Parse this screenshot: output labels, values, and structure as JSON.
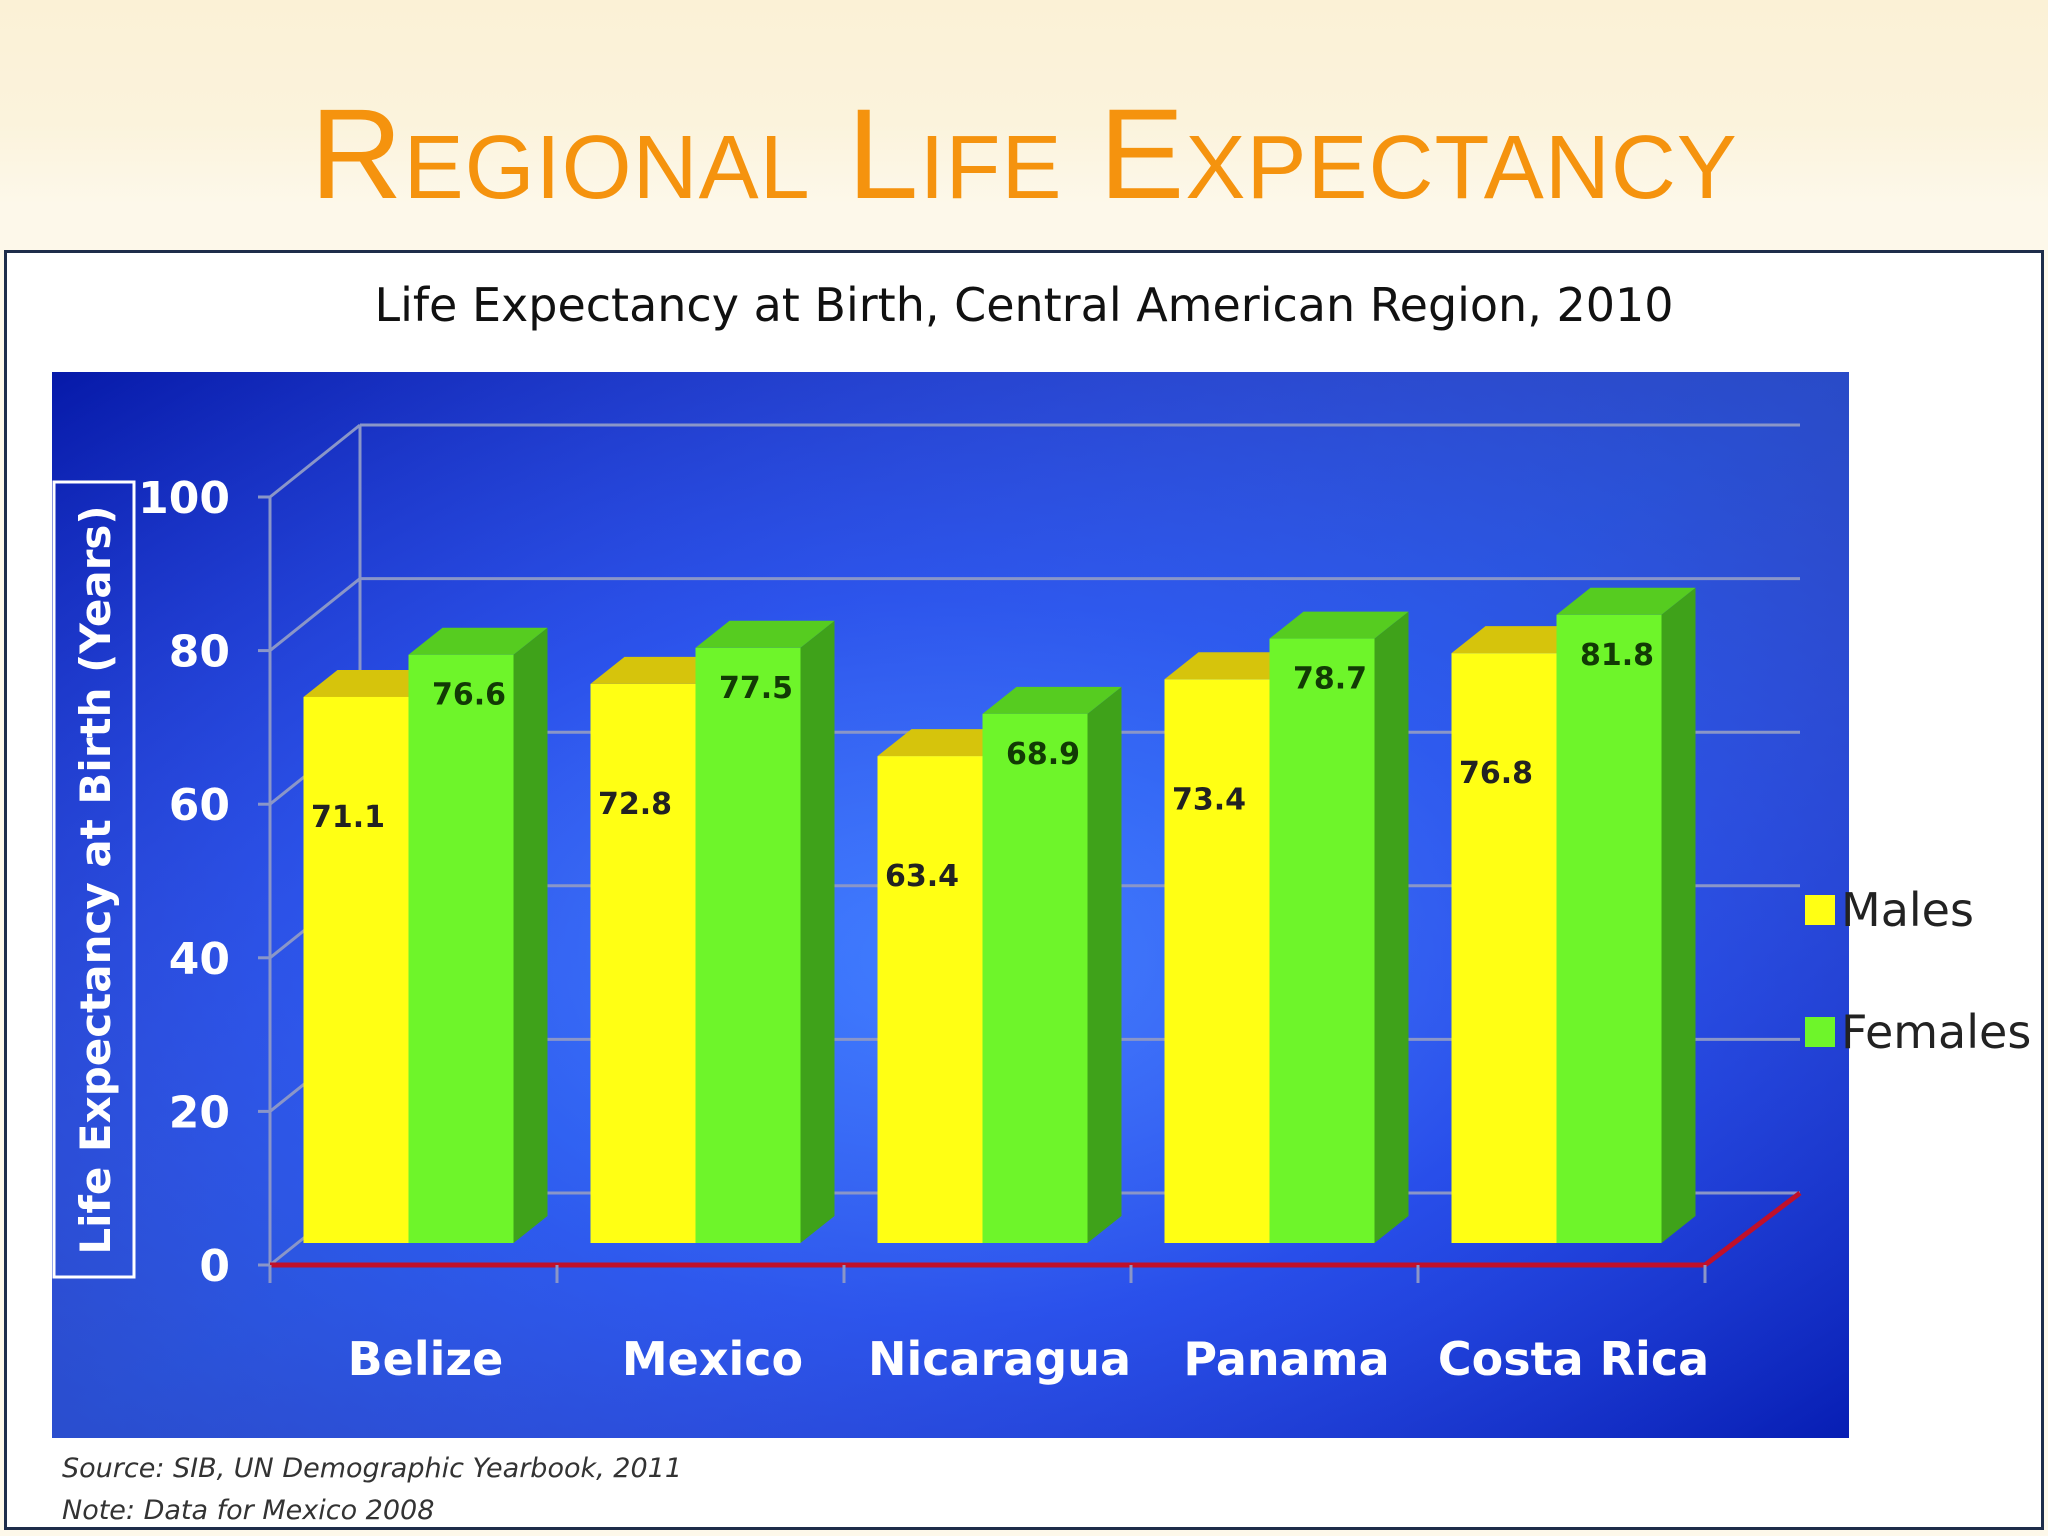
{
  "slide": {
    "title": "Regional Life Expectancy"
  },
  "chart_data": {
    "type": "bar",
    "title": "Life Expectancy at Birth, Central American Region, 2010",
    "xlabel": "",
    "ylabel": "Life Expectancy at Birth (Years)",
    "categories": [
      "Belize",
      "Mexico",
      "Nicaragua",
      "Panama",
      "Costa Rica"
    ],
    "series": [
      {
        "name": "Males",
        "values": [
          71.1,
          72.8,
          63.4,
          73.4,
          76.8
        ],
        "color": "#ffff14"
      },
      {
        "name": "Females",
        "values": [
          76.6,
          77.5,
          68.9,
          78.7,
          81.8
        ],
        "color": "#6ef52a"
      }
    ],
    "ylim": [
      0,
      100
    ],
    "yticks": [
      "0",
      "20",
      "40",
      "60",
      "80",
      "100"
    ],
    "grid": true,
    "legend": "right",
    "style": "3d-clustered-column",
    "background": "#0a2fd8"
  },
  "notes": {
    "source": "Source: SIB, UN Demographic Yearbook, 2011",
    "note": "Note: Data for Mexico 2008"
  }
}
